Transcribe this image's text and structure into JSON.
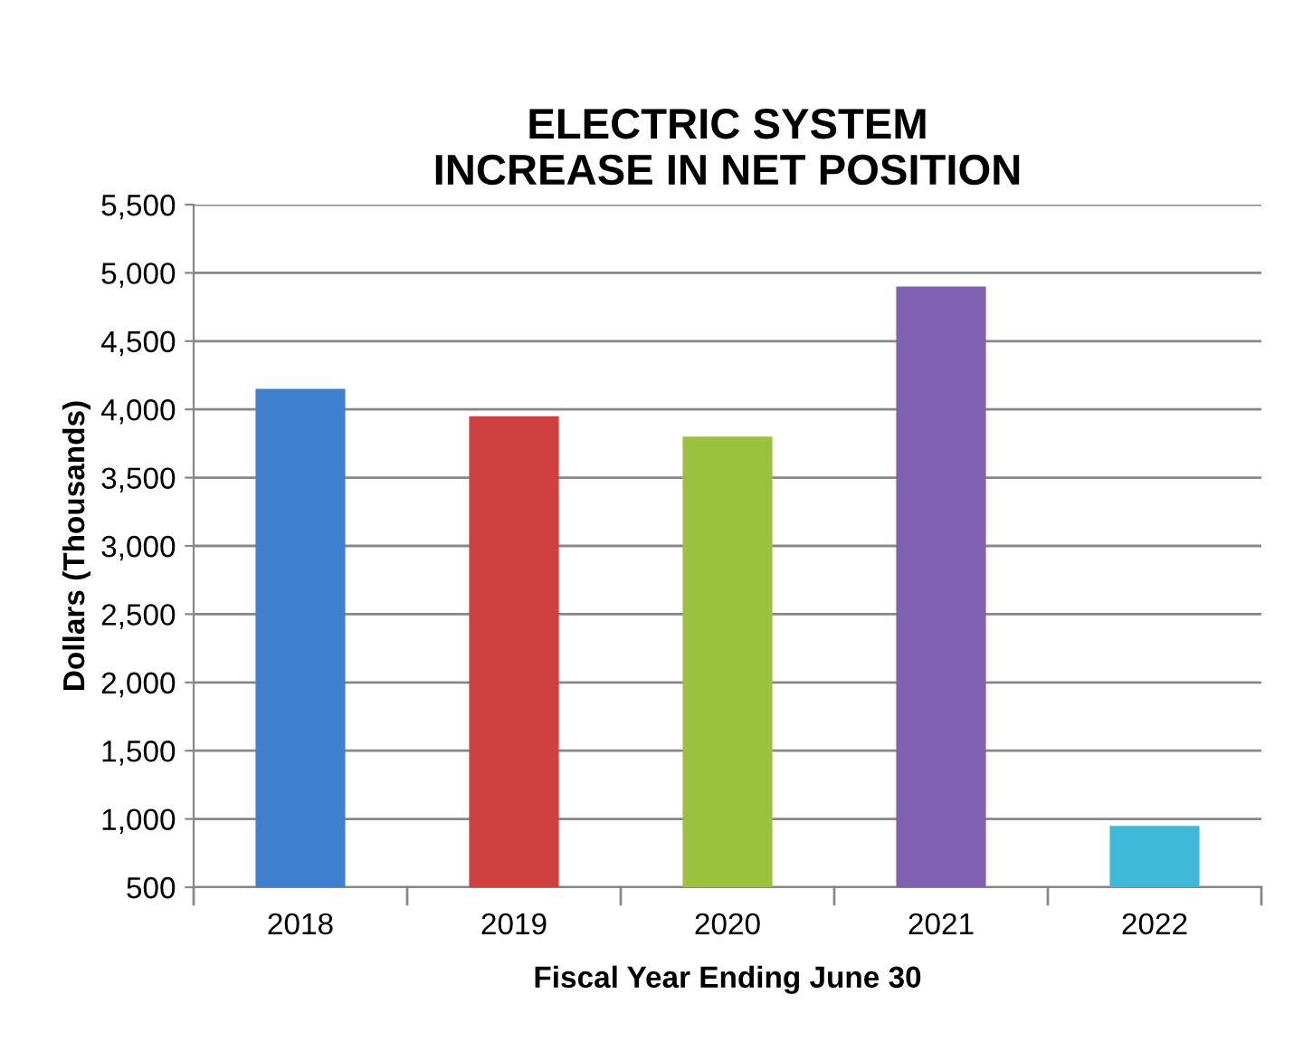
{
  "chart_data": {
    "type": "bar",
    "title": "ELECTRIC SYSTEM\nINCREASE IN NET POSITION",
    "xlabel": "Fiscal Year Ending June 30",
    "ylabel": "Dollars (Thousands)",
    "categories": [
      "2018",
      "2019",
      "2020",
      "2021",
      "2022"
    ],
    "values": [
      4150,
      3950,
      3800,
      4900,
      950
    ],
    "colors": [
      "#3f7fcf",
      "#d04040",
      "#9bc23c",
      "#8060b0",
      "#40b8d8"
    ],
    "ylim": [
      500,
      5500
    ],
    "yticks": [
      {
        "value": 500,
        "label": "500"
      },
      {
        "value": 1000,
        "label": "1,000"
      },
      {
        "value": 1500,
        "label": "1,500"
      },
      {
        "value": 2000,
        "label": "2,000"
      },
      {
        "value": 2500,
        "label": "2,500"
      },
      {
        "value": 3000,
        "label": "3,000"
      },
      {
        "value": 3500,
        "label": "3,500"
      },
      {
        "value": 4000,
        "label": "4,000"
      },
      {
        "value": 4500,
        "label": "4,500"
      },
      {
        "value": 5000,
        "label": "5,000"
      },
      {
        "value": 5500,
        "label": "5,500"
      }
    ],
    "grid": "y",
    "legend": false
  }
}
